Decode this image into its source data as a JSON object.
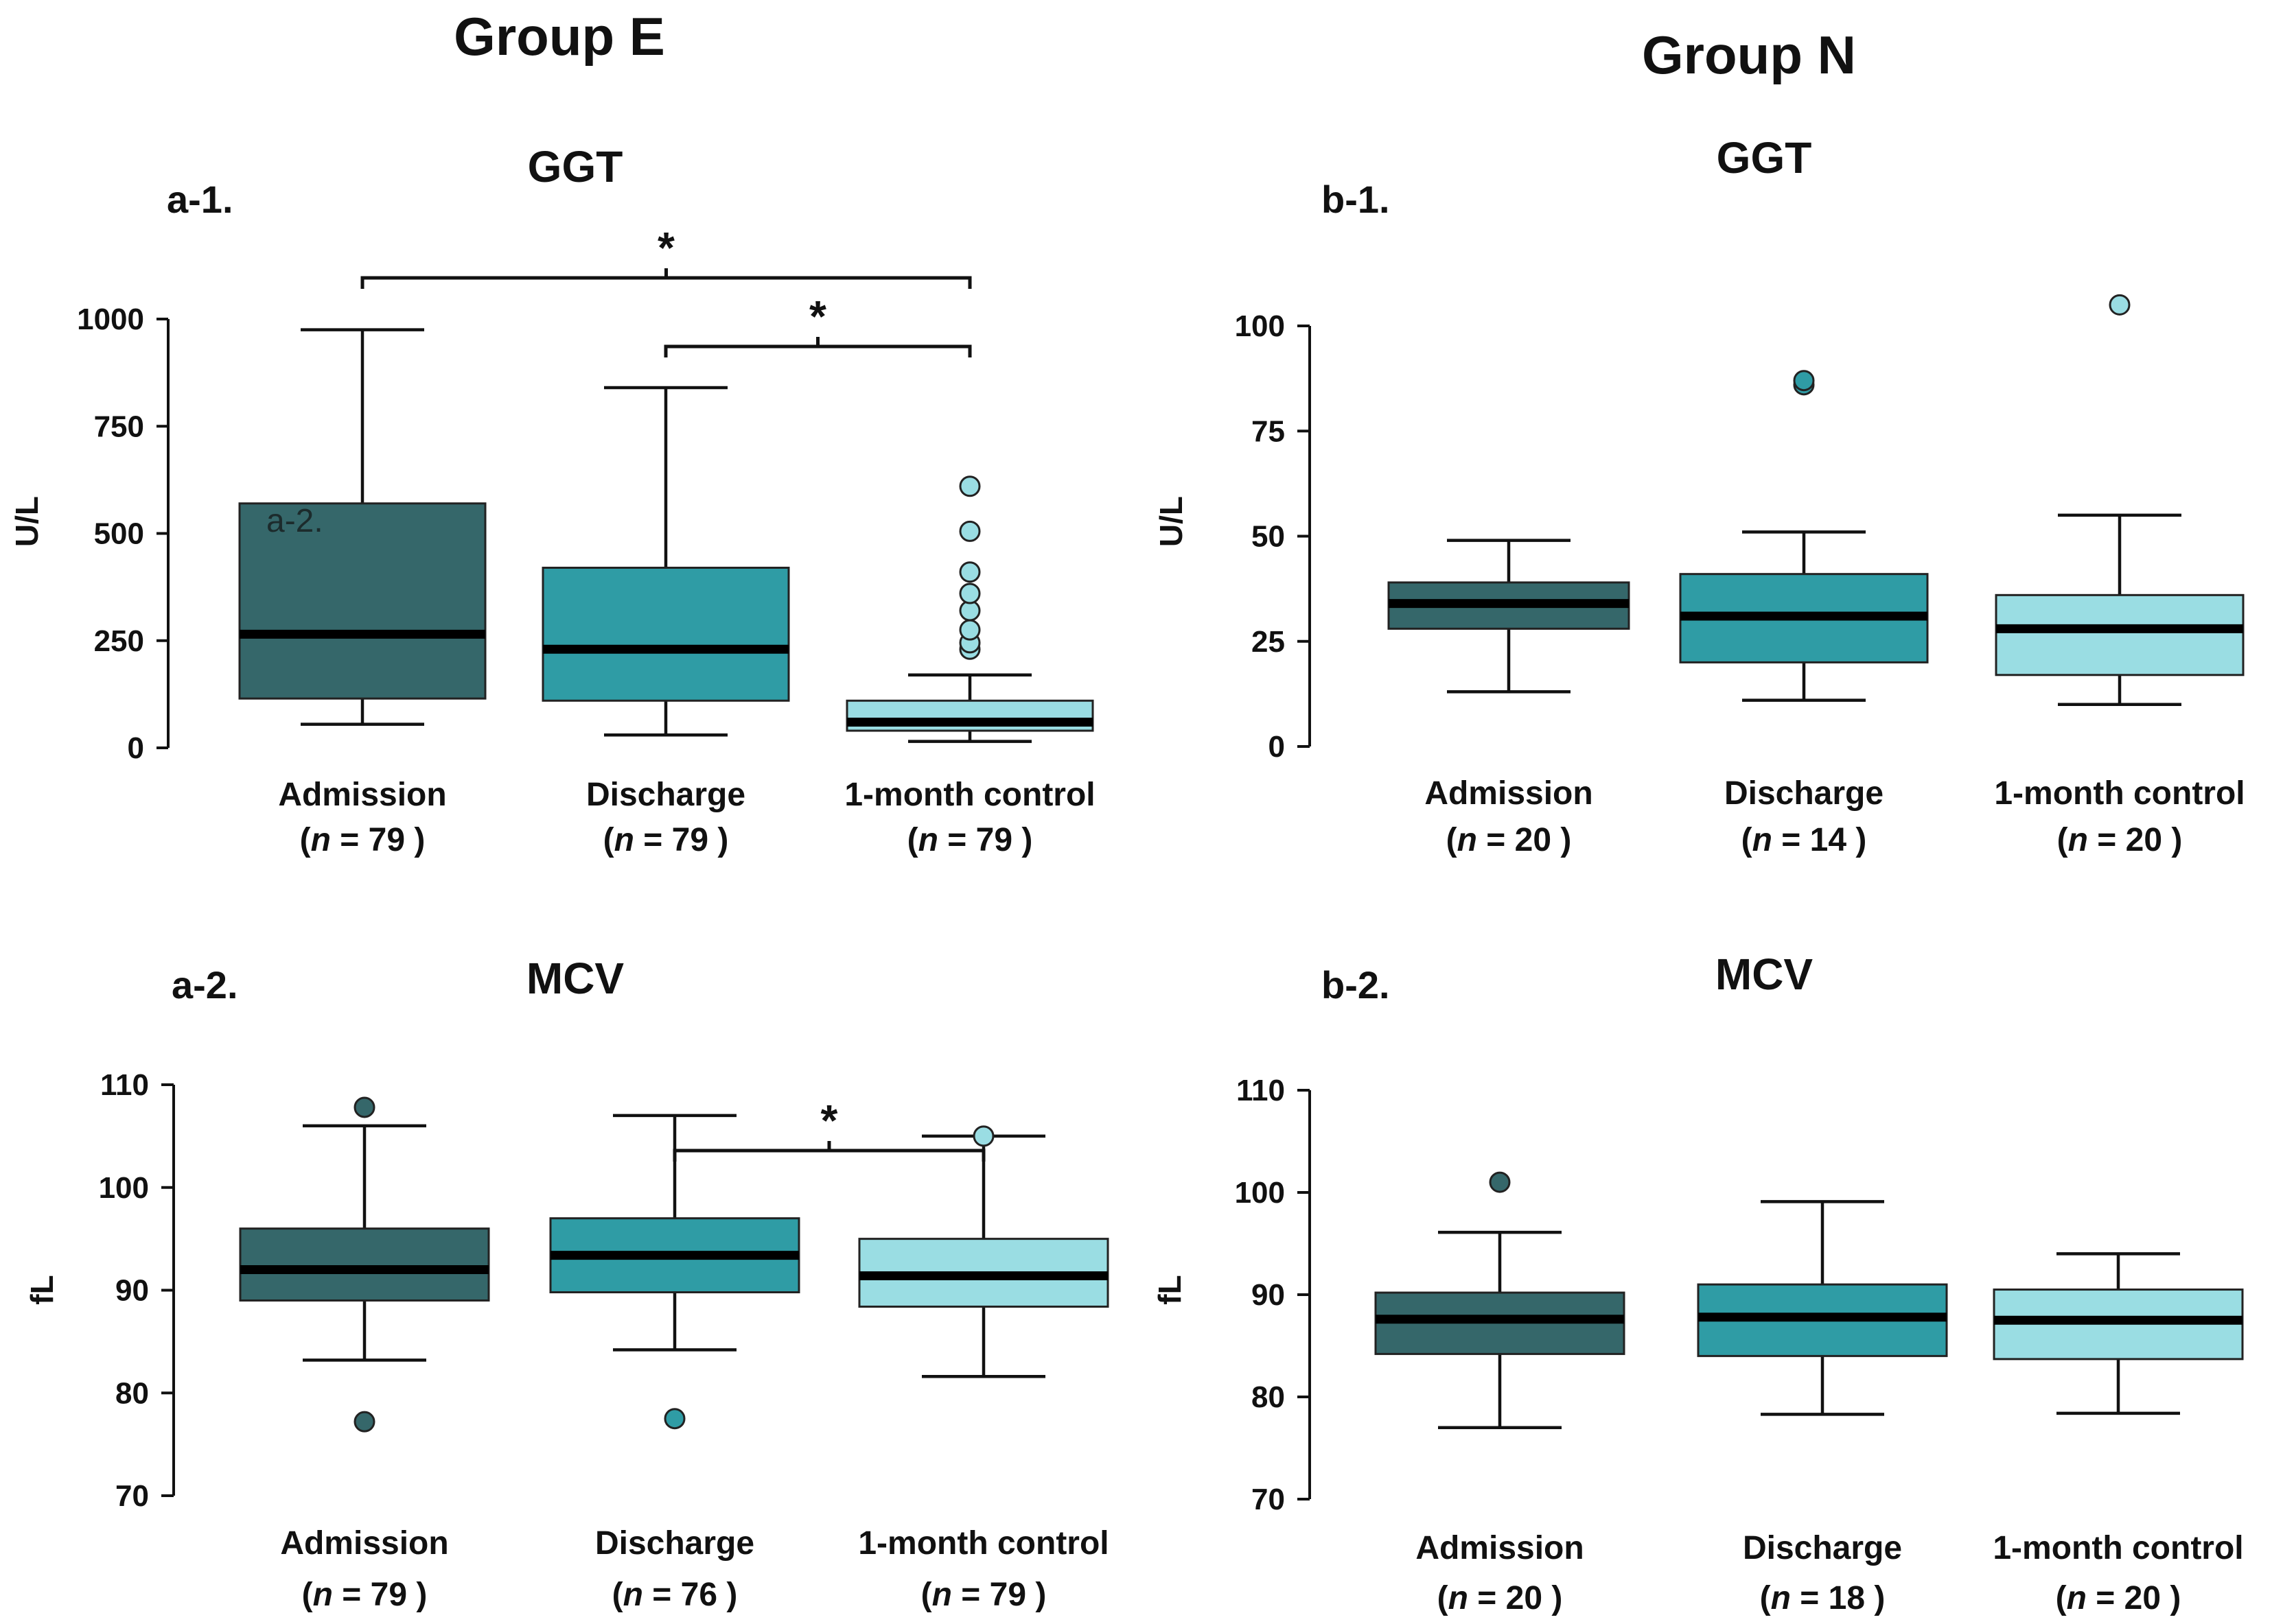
{
  "figure": {
    "group_titles": {
      "left": "Group E",
      "right": "Group N"
    },
    "colors": {
      "admission": "#35676A",
      "discharge": "#2F9CA5",
      "control": "#9ADDE3"
    }
  },
  "chart_data": [
    {
      "id": "a1",
      "type": "boxplot",
      "panel_label": "a-1.",
      "title": "GGT",
      "ylabel": "U/L",
      "overlay_text": "a-2.",
      "ylim": [
        0,
        1000
      ],
      "yticks": [
        0,
        250,
        500,
        750,
        1000
      ],
      "categories": [
        "Admission",
        "Discharge",
        "1-month control"
      ],
      "n": [
        "79",
        "79",
        "79"
      ],
      "n_prefix": "n",
      "boxes": [
        {
          "q1": 115,
          "median": 265,
          "q3": 570,
          "whislo": 55,
          "whishi": 975,
          "fliers": []
        },
        {
          "q1": 110,
          "median": 230,
          "q3": 420,
          "whislo": 30,
          "whishi": 840,
          "fliers": []
        },
        {
          "q1": 40,
          "median": 60,
          "q3": 110,
          "whislo": 15,
          "whishi": 170,
          "fliers": [
            230,
            245,
            275,
            320,
            360,
            410,
            505,
            610
          ]
        }
      ],
      "significance": [
        {
          "from": 0,
          "to": 2,
          "label": "*"
        },
        {
          "from": 1,
          "to": 2,
          "label": "*"
        }
      ]
    },
    {
      "id": "b1",
      "type": "boxplot",
      "panel_label": "b-1.",
      "title": "GGT",
      "ylabel": "U/L",
      "ylim": [
        0,
        100
      ],
      "yticks": [
        0,
        25,
        50,
        75,
        100
      ],
      "categories": [
        "Admission",
        "Discharge",
        "1-month control"
      ],
      "n": [
        "20",
        "14",
        "20"
      ],
      "n_prefix": "n",
      "boxes": [
        {
          "q1": 28,
          "median": 34,
          "q3": 39,
          "whislo": 13,
          "whishi": 49,
          "fliers": []
        },
        {
          "q1": 20,
          "median": 31,
          "q3": 41,
          "whislo": 11,
          "whishi": 51,
          "fliers": [
            86,
            87
          ]
        },
        {
          "q1": 17,
          "median": 28,
          "q3": 36,
          "whislo": 10,
          "whishi": 55,
          "fliers": [
            105
          ]
        }
      ],
      "significance": []
    },
    {
      "id": "a2",
      "type": "boxplot",
      "panel_label": "a-2.",
      "title": "MCV",
      "ylabel": "fL",
      "ylim": [
        70,
        110
      ],
      "yticks": [
        70,
        80,
        90,
        100,
        110
      ],
      "categories": [
        "Admission",
        "Discharge",
        "1-month control"
      ],
      "n": [
        "79",
        "76",
        "79"
      ],
      "n_prefix": "n",
      "boxes": [
        {
          "q1": 89,
          "median": 92,
          "q3": 96,
          "whislo": 83.2,
          "whishi": 106,
          "fliers": [
            77.2,
            107.8
          ]
        },
        {
          "q1": 89.8,
          "median": 93.4,
          "q3": 97,
          "whislo": 84.2,
          "whishi": 107,
          "fliers": [
            77.5
          ]
        },
        {
          "q1": 88.4,
          "median": 91.4,
          "q3": 95,
          "whislo": 81.6,
          "whishi": 105,
          "fliers": [
            105
          ]
        }
      ],
      "significance": [
        {
          "from": 1,
          "to": 2,
          "label": "*"
        }
      ]
    },
    {
      "id": "b2",
      "type": "boxplot",
      "panel_label": "b-2.",
      "title": "MCV",
      "ylabel": "fL",
      "ylim": [
        70,
        110
      ],
      "yticks": [
        70,
        80,
        90,
        100,
        110
      ],
      "categories": [
        "Admission",
        "Discharge",
        "1-month control"
      ],
      "n": [
        "20",
        "18",
        "20"
      ],
      "n_prefix": "n",
      "boxes": [
        {
          "q1": 84.2,
          "median": 87.6,
          "q3": 90.2,
          "whislo": 77,
          "whishi": 96.1,
          "fliers": [
            101
          ]
        },
        {
          "q1": 84,
          "median": 87.8,
          "q3": 91,
          "whislo": 78.3,
          "whishi": 99.1,
          "fliers": []
        },
        {
          "q1": 83.7,
          "median": 87.5,
          "q3": 90.5,
          "whislo": 78.4,
          "whishi": 94,
          "fliers": []
        }
      ],
      "significance": []
    }
  ]
}
